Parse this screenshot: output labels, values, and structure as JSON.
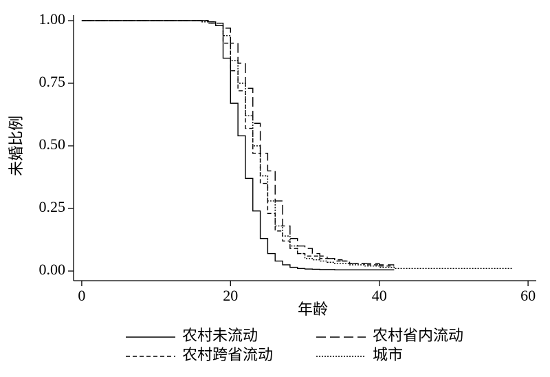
{
  "chart_data": {
    "type": "step",
    "x_label": "年龄",
    "y_label": "未婚比例",
    "xlim": [
      -1.1,
      61.1
    ],
    "ylim": [
      -0.022,
      1.022
    ],
    "xticks": [
      0,
      20,
      40,
      60
    ],
    "yticks": [
      {
        "value": 0,
        "label": "0.00"
      },
      {
        "value": 0.25,
        "label": "0.25"
      },
      {
        "value": 0.5,
        "label": "0.50"
      },
      {
        "value": 0.75,
        "label": "0.75"
      },
      {
        "value": 1,
        "label": "1.00"
      }
    ],
    "x": [
      0,
      15,
      16,
      17,
      18,
      19,
      20,
      21,
      22,
      23,
      24,
      25,
      26,
      27,
      28,
      29,
      30,
      31,
      32,
      33,
      34,
      35,
      36,
      37,
      38,
      39,
      40,
      41,
      42,
      58
    ],
    "series": [
      {
        "name": "农村未流动",
        "color": "#000000",
        "dash": "none",
        "values": [
          1,
          1,
          1,
          0.995,
          0.98,
          0.85,
          0.67,
          0.54,
          0.37,
          0.24,
          0.13,
          0.07,
          0.04,
          0.025,
          0.015,
          0.01,
          0.008,
          0.007,
          0.006,
          0.006,
          0.005,
          0.005,
          0.005,
          0.005,
          0.005,
          0.005,
          0.005,
          0.005,
          0.005,
          null
        ]
      },
      {
        "name": "农村省内流动",
        "color": "#000000",
        "dash": "14 6",
        "values": [
          1,
          1,
          1,
          0.995,
          0.99,
          0.97,
          0.91,
          0.83,
          0.73,
          0.59,
          0.47,
          0.4,
          0.28,
          0.18,
          0.13,
          0.1,
          0.09,
          0.07,
          0.06,
          0.05,
          0.045,
          0.04,
          0.03,
          0.03,
          0.03,
          0.03,
          0.025,
          0.025,
          0.025,
          null
        ]
      },
      {
        "name": "农村跨省流动",
        "color": "#000000",
        "dash": "6 4",
        "values": [
          1,
          1,
          1,
          0.99,
          0.98,
          0.91,
          0.8,
          0.72,
          0.57,
          0.47,
          0.35,
          0.23,
          0.16,
          0.12,
          0.09,
          0.07,
          0.06,
          0.06,
          0.05,
          0.05,
          0.04,
          0.04,
          0.03,
          0.03,
          0.025,
          0.025,
          0.02,
          0.02,
          0.02,
          null
        ]
      },
      {
        "name": "城市",
        "color": "#000000",
        "dash": "2 2",
        "values": [
          1,
          1,
          0.995,
          0.99,
          0.99,
          0.94,
          0.84,
          0.75,
          0.62,
          0.5,
          0.38,
          0.28,
          0.18,
          0.14,
          0.1,
          0.07,
          0.05,
          0.045,
          0.04,
          0.035,
          0.03,
          0.03,
          0.025,
          0.025,
          0.02,
          0.02,
          0.015,
          0.015,
          0.01,
          0.01
        ]
      }
    ]
  }
}
